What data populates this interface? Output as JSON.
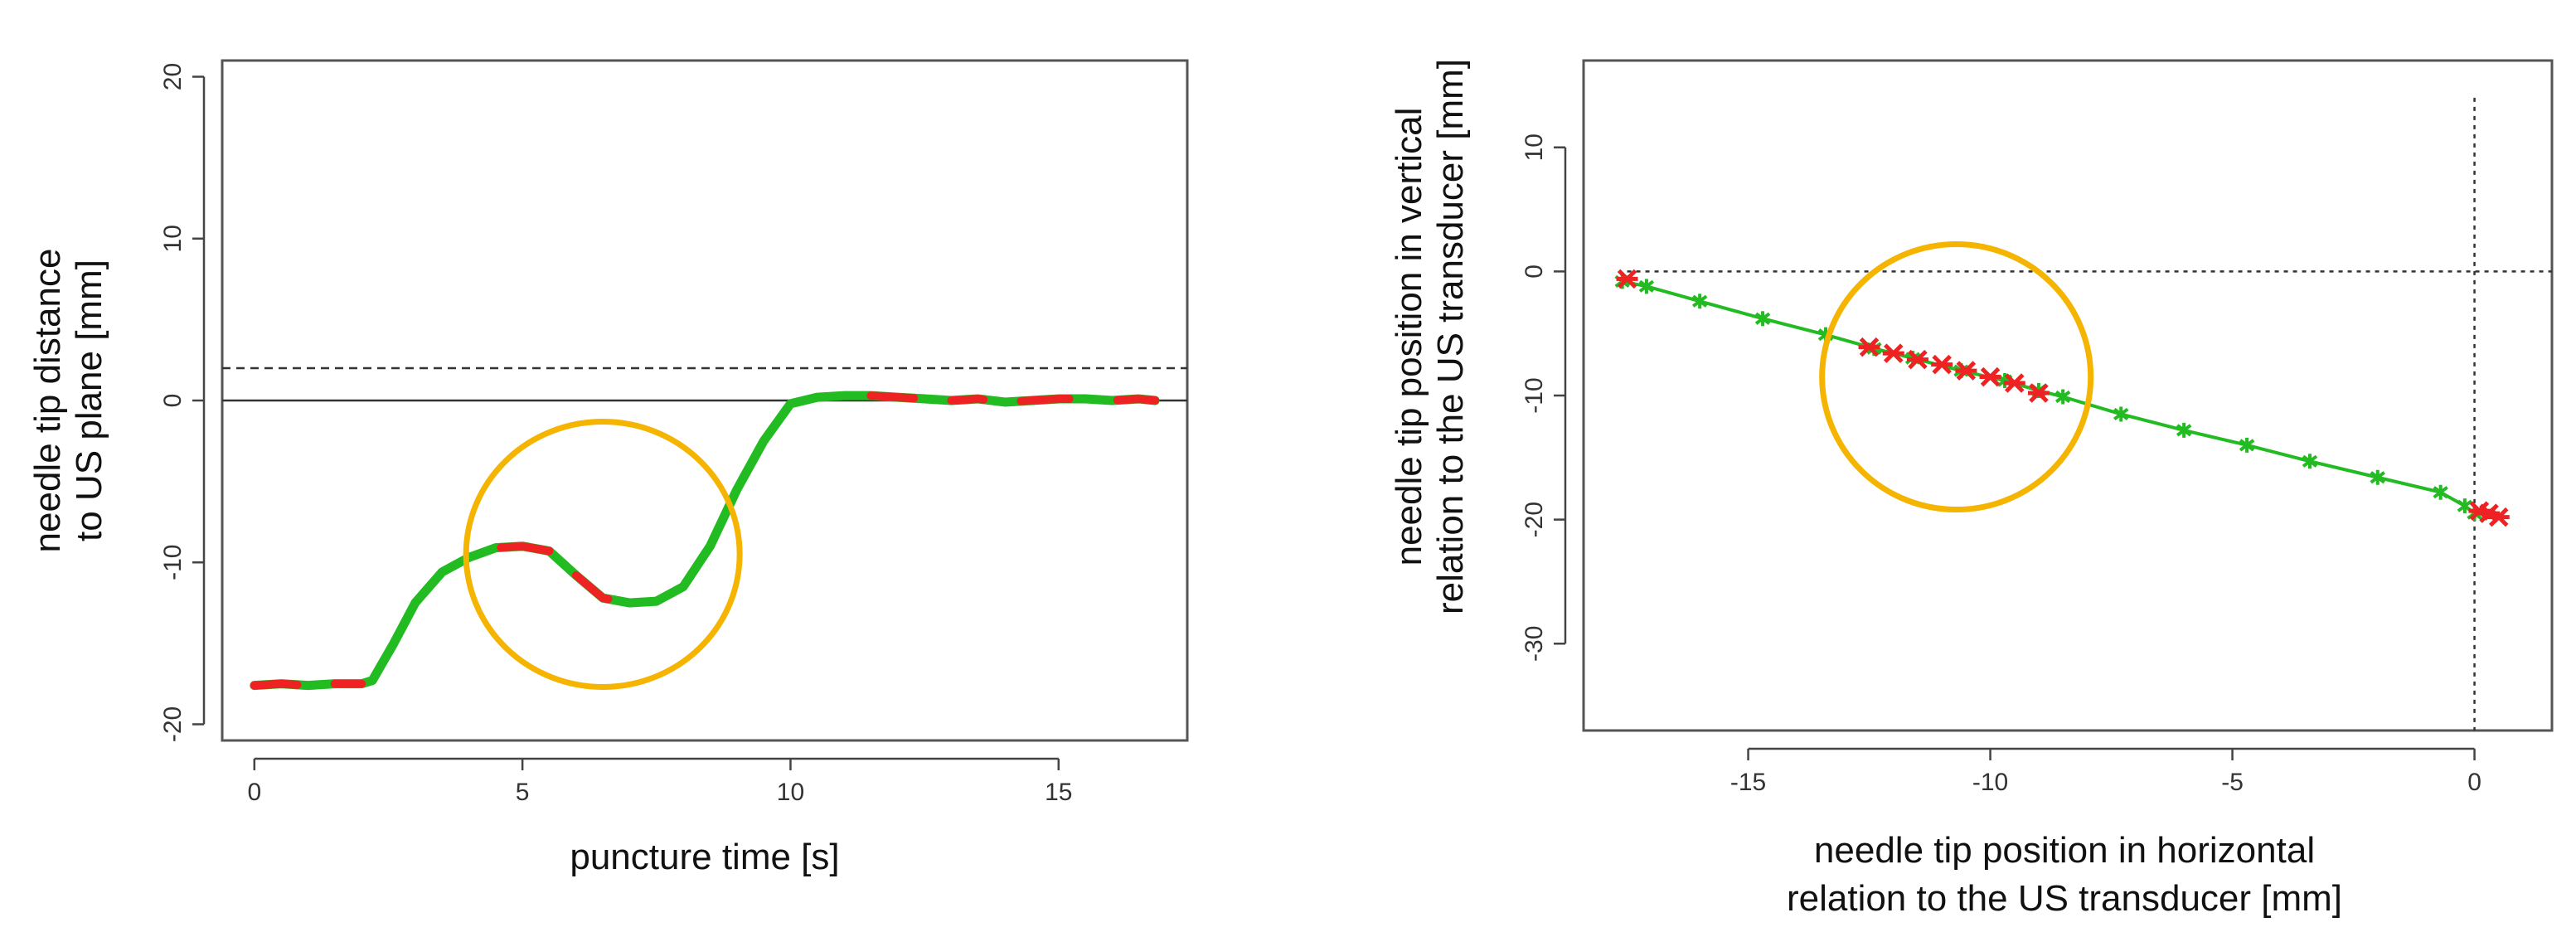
{
  "chart_data": [
    {
      "type": "line",
      "xlabel": "puncture time [s]",
      "ylabel": [
        "needle tip distance",
        "to US plane [mm]"
      ],
      "xlim": [
        -0.6,
        17.4
      ],
      "ylim": [
        -21,
        21
      ],
      "xticks": [
        0,
        5,
        10,
        15
      ],
      "yticks": [
        -20,
        -10,
        0,
        10,
        20
      ],
      "x_tick_labels": [
        "0",
        "5",
        "10",
        "15"
      ],
      "y_tick_labels": [
        "-20",
        "-10",
        "0",
        "10",
        "20"
      ],
      "reference_lines": [
        {
          "axis": "y",
          "value": 0,
          "style": "solid"
        },
        {
          "axis": "y",
          "value": 2,
          "style": "dashed"
        }
      ],
      "series": [
        {
          "color": "#22bb22",
          "x": [
            0,
            0.5,
            1,
            1.5,
            2,
            2.2,
            2.6,
            3,
            3.5,
            4,
            4.5,
            5,
            5.5,
            6,
            6.5,
            7,
            7.5,
            8,
            8.5,
            9,
            9.5,
            10,
            10.5,
            11,
            11.5,
            12,
            12.5,
            13,
            13.5,
            14,
            14.5,
            15,
            15.5,
            16,
            16.5,
            16.8
          ],
          "y": [
            -17.6,
            -17.5,
            -17.6,
            -17.5,
            -17.5,
            -17.3,
            -15,
            -12.5,
            -10.6,
            -9.7,
            -9.1,
            -9,
            -9.3,
            -10.8,
            -12.2,
            -12.5,
            -12.4,
            -11.5,
            -9,
            -5.5,
            -2.5,
            -0.2,
            0.2,
            0.3,
            0.3,
            0.2,
            0.1,
            0,
            0.1,
            -0.1,
            0,
            0.1,
            0.1,
            0,
            0.1,
            0
          ]
        }
      ],
      "highlight_segments": [
        {
          "color": "#ee2222",
          "x": [
            0,
            0.8,
            1.5,
            2
          ]
        },
        {
          "color": "#ee2222",
          "x": [
            4.6,
            5.5,
            6,
            6.6,
            7.1
          ]
        },
        {
          "color": "#ee2222",
          "x": [
            11.5,
            12.3,
            13,
            13.6,
            14.3,
            15.2,
            16.1,
            16.8
          ]
        }
      ],
      "circle_annotation": {
        "cx": 6.5,
        "cy": -9.5,
        "color": "#f4b400"
      }
    },
    {
      "type": "scatter",
      "xlabel": [
        "needle tip position in horizontal",
        "relation to the US transducer [mm]"
      ],
      "ylabel": [
        "needle tip position in vertical",
        "relation to the US transducer [mm]"
      ],
      "xlim": [
        -18.4,
        1.6
      ],
      "ylim": [
        -37,
        17
      ],
      "xticks": [
        -15,
        -10,
        -5,
        0
      ],
      "yticks": [
        -30,
        -20,
        -10,
        0,
        10
      ],
      "x_tick_labels": [
        "-15",
        "-10",
        "-5",
        "0"
      ],
      "y_tick_labels": [
        "-30",
        "-20",
        "-10",
        "0",
        "10"
      ],
      "reference_lines": [
        {
          "axis": "y",
          "value": 0,
          "style": "dotted"
        },
        {
          "axis": "x",
          "value": 0,
          "style": "dotted"
        }
      ],
      "series": [
        {
          "color": "#22bb22",
          "x": [
            -17.6,
            -17.1,
            -16,
            -14.7,
            -13.4,
            -12.4,
            -11.6,
            -10.6,
            -9.7,
            -9,
            -8.5,
            -7.3,
            -6,
            -4.7,
            -3.4,
            -2,
            -0.7,
            -0.2,
            0
          ],
          "y": [
            -0.8,
            -1.2,
            -2.4,
            -3.8,
            -5.1,
            -6.2,
            -7,
            -8,
            -8.8,
            -9.6,
            -10.1,
            -11.5,
            -12.8,
            -14,
            -15.3,
            -16.6,
            -17.8,
            -18.9,
            -19.5
          ]
        },
        {
          "color": "#ee2222",
          "x": [
            -17.5,
            -12.5,
            -12,
            -11.5,
            -11,
            -10.5,
            -10,
            -9.5,
            -9,
            0.1,
            0.3,
            0.5
          ],
          "y": [
            -0.6,
            -6.1,
            -6.6,
            -7.1,
            -7.5,
            -8,
            -8.5,
            -9,
            -9.8,
            -19.3,
            -19.5,
            -19.8
          ]
        }
      ],
      "circle_annotation": {
        "cx": -10.7,
        "cy": -8.5,
        "color": "#f4b400"
      }
    }
  ]
}
